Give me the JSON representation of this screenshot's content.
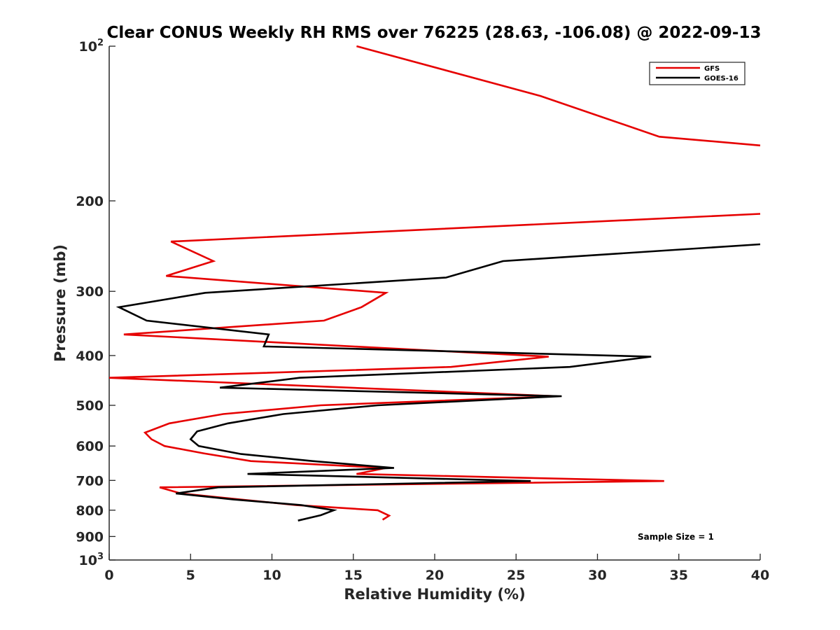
{
  "chart_data": {
    "type": "line",
    "title": "Clear CONUS Weekly RH RMS over 76225 (28.63, -106.08) @ 2022-09-13",
    "xlabel": "Relative Humidity (%)",
    "ylabel": "Pressure (mb)",
    "xlim": [
      0,
      40
    ],
    "ylim": [
      100,
      1000
    ],
    "y_scale": "log",
    "y_reversed": true,
    "x_ticks": [
      "0",
      "5",
      "10",
      "15",
      "20",
      "25",
      "30",
      "35",
      "40"
    ],
    "y_ticks": [
      {
        "value": 100,
        "label": "10",
        "sup": "2"
      },
      {
        "value": 200,
        "label": "200"
      },
      {
        "value": 300,
        "label": "300"
      },
      {
        "value": 400,
        "label": "400"
      },
      {
        "value": 500,
        "label": "500"
      },
      {
        "value": 600,
        "label": "600"
      },
      {
        "value": 700,
        "label": "700"
      },
      {
        "value": 800,
        "label": "800"
      },
      {
        "value": 900,
        "label": "900"
      },
      {
        "value": 1000,
        "label": "10",
        "sup": "3"
      }
    ],
    "grid": false,
    "legend_position": "top-right",
    "annotation": "Sample Size = 1",
    "series": [
      {
        "name": "GFS",
        "color": "#e60000",
        "points": [
          [
            15.2,
            100
          ],
          [
            26.5,
            125
          ],
          [
            33.8,
            150
          ],
          [
            40,
            156
          ],
          [
            null,
            null
          ],
          [
            40,
            212
          ],
          [
            3.8,
            240
          ],
          [
            6.4,
            262
          ],
          [
            3.5,
            280
          ],
          [
            17.0,
            302
          ],
          [
            15.5,
            322
          ],
          [
            13.2,
            342
          ],
          [
            0.9,
            364
          ],
          [
            27.0,
            402
          ],
          [
            21.0,
            421
          ],
          [
            0,
            442
          ],
          [
            27.5,
            480
          ],
          [
            13.0,
            500
          ],
          [
            7.0,
            520
          ],
          [
            3.7,
            542
          ],
          [
            2.2,
            565
          ],
          [
            2.6,
            582
          ],
          [
            3.4,
            600
          ],
          [
            5.8,
            620
          ],
          [
            8.7,
            642
          ],
          [
            17.0,
            662
          ],
          [
            15.2,
            680
          ],
          [
            34.1,
            702
          ],
          [
            3.1,
            722
          ],
          [
            4.4,
            742
          ],
          [
            8.0,
            762
          ],
          [
            11.5,
            782
          ],
          [
            16.5,
            800
          ],
          [
            17.2,
            820
          ],
          [
            16.8,
            835
          ]
        ]
      },
      {
        "name": "GOES-16",
        "color": "#000000",
        "points": [
          [
            40,
            243
          ],
          [
            24.2,
            262
          ],
          [
            20.7,
            282
          ],
          [
            5.9,
            302
          ],
          [
            0.6,
            322
          ],
          [
            2.3,
            342
          ],
          [
            9.8,
            364
          ],
          [
            9.5,
            384
          ],
          [
            33.3,
            402
          ],
          [
            28.3,
            421
          ],
          [
            11.7,
            442
          ],
          [
            6.8,
            462
          ],
          [
            27.8,
            480
          ],
          [
            16.5,
            500
          ],
          [
            10.7,
            520
          ],
          [
            7.3,
            542
          ],
          [
            5.4,
            562
          ],
          [
            5.0,
            582
          ],
          [
            5.5,
            600
          ],
          [
            8.1,
            622
          ],
          [
            12.5,
            642
          ],
          [
            17.5,
            662
          ],
          [
            8.5,
            680
          ],
          [
            25.9,
            702
          ],
          [
            6.7,
            722
          ],
          [
            4.1,
            742
          ],
          [
            7.6,
            762
          ],
          [
            11.8,
            782
          ],
          [
            13.8,
            800
          ],
          [
            13.0,
            818
          ],
          [
            11.6,
            838
          ]
        ]
      }
    ]
  }
}
